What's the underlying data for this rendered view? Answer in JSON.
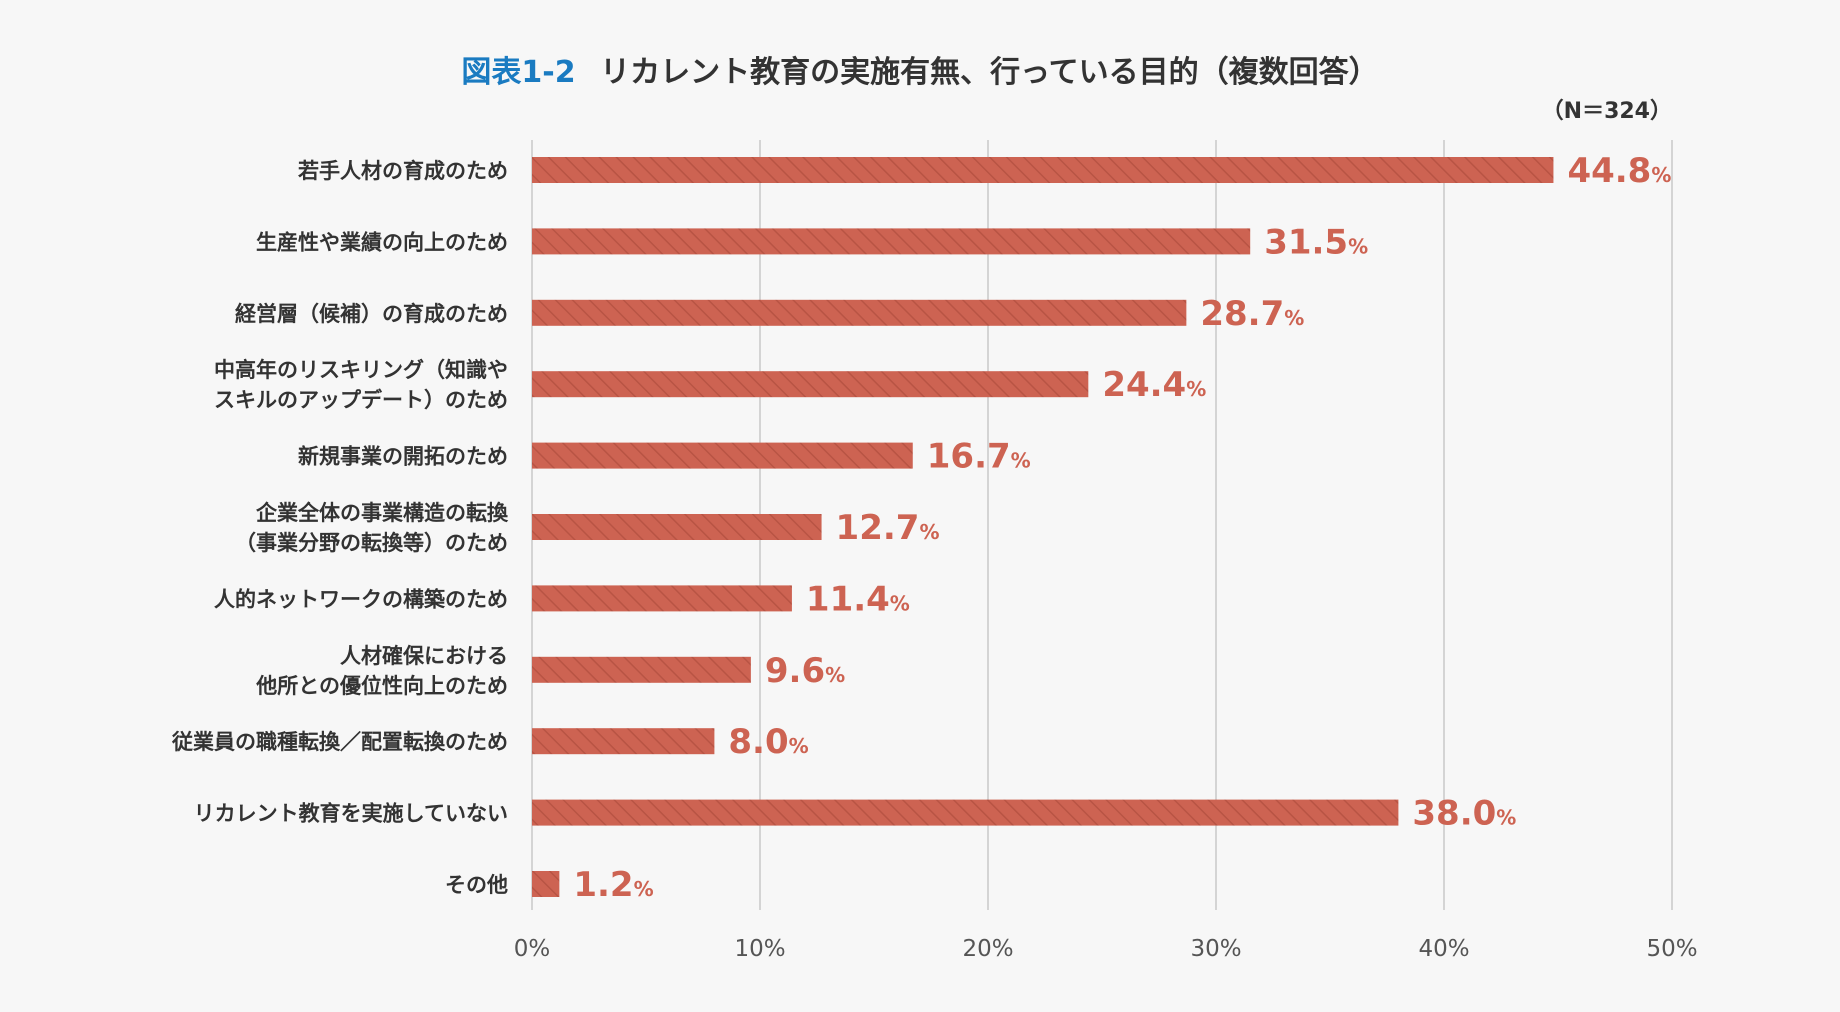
{
  "chart_data": {
    "type": "bar",
    "orientation": "horizontal",
    "title_prefix": "図表1-2",
    "title": "リカレント教育の実施有無、行っている目的（複数回答）",
    "note": "（N＝324）",
    "categories": [
      [
        "若手人材の育成のため"
      ],
      [
        "生産性や業績の向上のため"
      ],
      [
        "経営層（候補）の育成のため"
      ],
      [
        "中高年のリスキリング（知識や",
        "スキルのアップデート）のため"
      ],
      [
        "新規事業の開拓のため"
      ],
      [
        "企業全体の事業構造の転換",
        "（事業分野の転換等）のため"
      ],
      [
        "人的ネットワークの構築のため"
      ],
      [
        "人材確保における",
        "他所との優位性向上のため"
      ],
      [
        "従業員の職種転換／配置転換のため"
      ],
      [
        "リカレント教育を実施していない"
      ],
      [
        "その他"
      ]
    ],
    "values": [
      44.8,
      31.5,
      28.7,
      24.4,
      16.7,
      12.7,
      11.4,
      9.6,
      8.0,
      38.0,
      1.2
    ],
    "value_labels": [
      "44.8",
      "31.5",
      "28.7",
      "24.4",
      "16.7",
      "12.7",
      "11.4",
      "9.6",
      "8.0",
      "38.0",
      "1.2"
    ],
    "value_suffix": "%",
    "xlim": [
      0,
      50
    ],
    "xticks": [
      0,
      10,
      20,
      30,
      40,
      50
    ],
    "xtick_labels": [
      "0%",
      "10%",
      "20%",
      "30%",
      "40%",
      "50%"
    ],
    "grid": true,
    "colors": {
      "bar": "#cd6352",
      "bar_hatch": "#b85444",
      "value_text": "#cd6352",
      "title_prefix": "#1a7bc1",
      "title": "#333333",
      "grid": "#c8c8c8",
      "background": "#f7f7f7"
    }
  }
}
